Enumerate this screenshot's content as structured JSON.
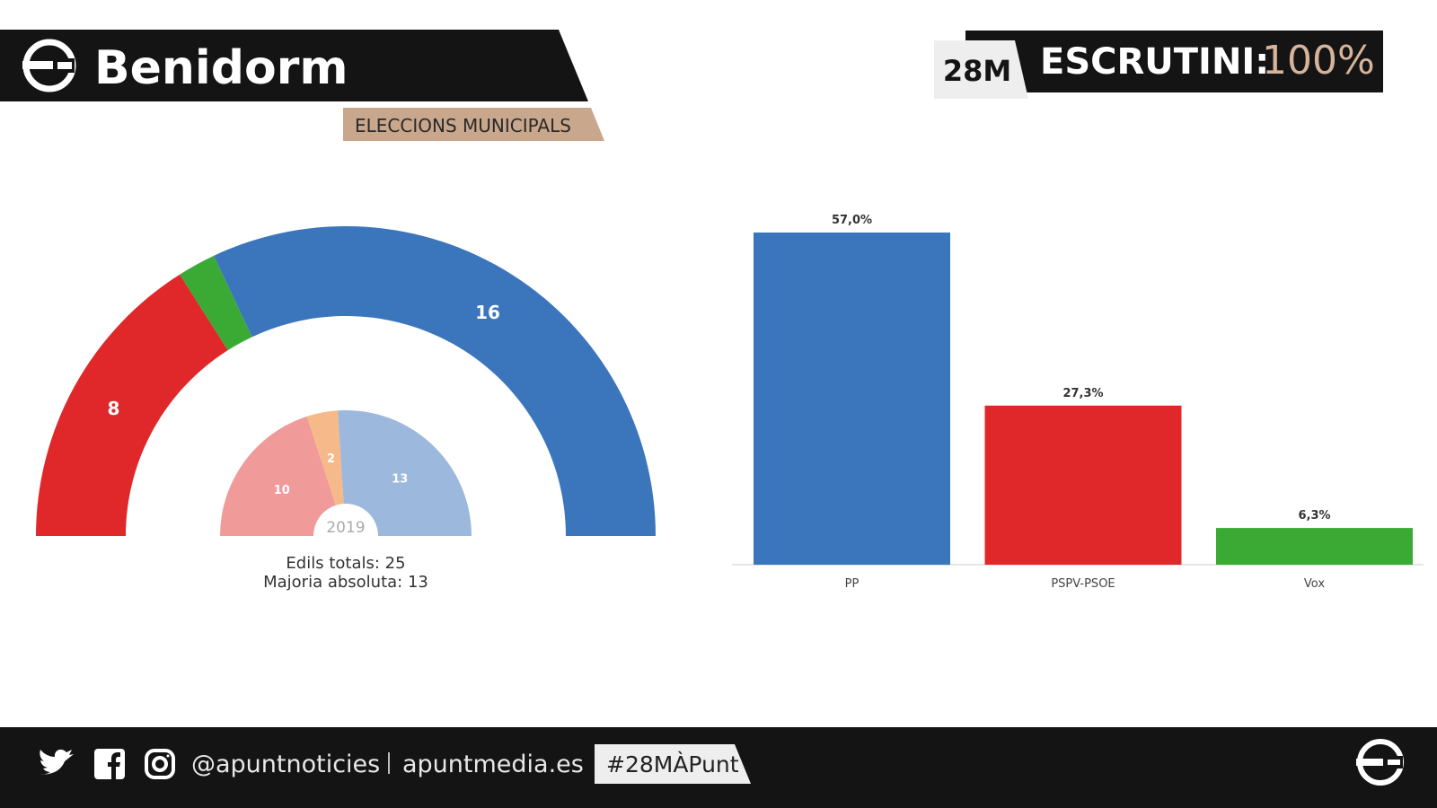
{
  "header": {
    "title": "Benidorm",
    "subtitle": "ELECCIONS MUNICIPALS",
    "badge": "28M",
    "status_label": "ESCRUTINI:",
    "status_value": "100%"
  },
  "chart_data": [
    {
      "type": "hemicycle",
      "values": [
        8,
        1,
        16
      ],
      "colors": [
        "#e0282a",
        "#3aaa35",
        "#3b75bb"
      ],
      "inner": {
        "title": "2019",
        "values": [
          10,
          2,
          13
        ],
        "colors": [
          "#f09a9a",
          "#f5b98a",
          "#9cb8dd"
        ]
      },
      "notes": [
        "Edils totals: 25",
        "Majoria absoluta: 13"
      ]
    },
    {
      "type": "bar",
      "categories": [
        "PP",
        "PSPV-PSOE",
        "Vox"
      ],
      "values": [
        57,
        27.3,
        6.3
      ],
      "value_labels": [
        "57,0%",
        "27,3%",
        "6,3%"
      ],
      "colors": [
        "#3b75bb",
        "#e0282a",
        "#3aaa35"
      ]
    }
  ],
  "footer": {
    "handle": "@apuntnoticies",
    "website": "apuntmedia.es",
    "hashtag": "#28MÀPunt"
  }
}
